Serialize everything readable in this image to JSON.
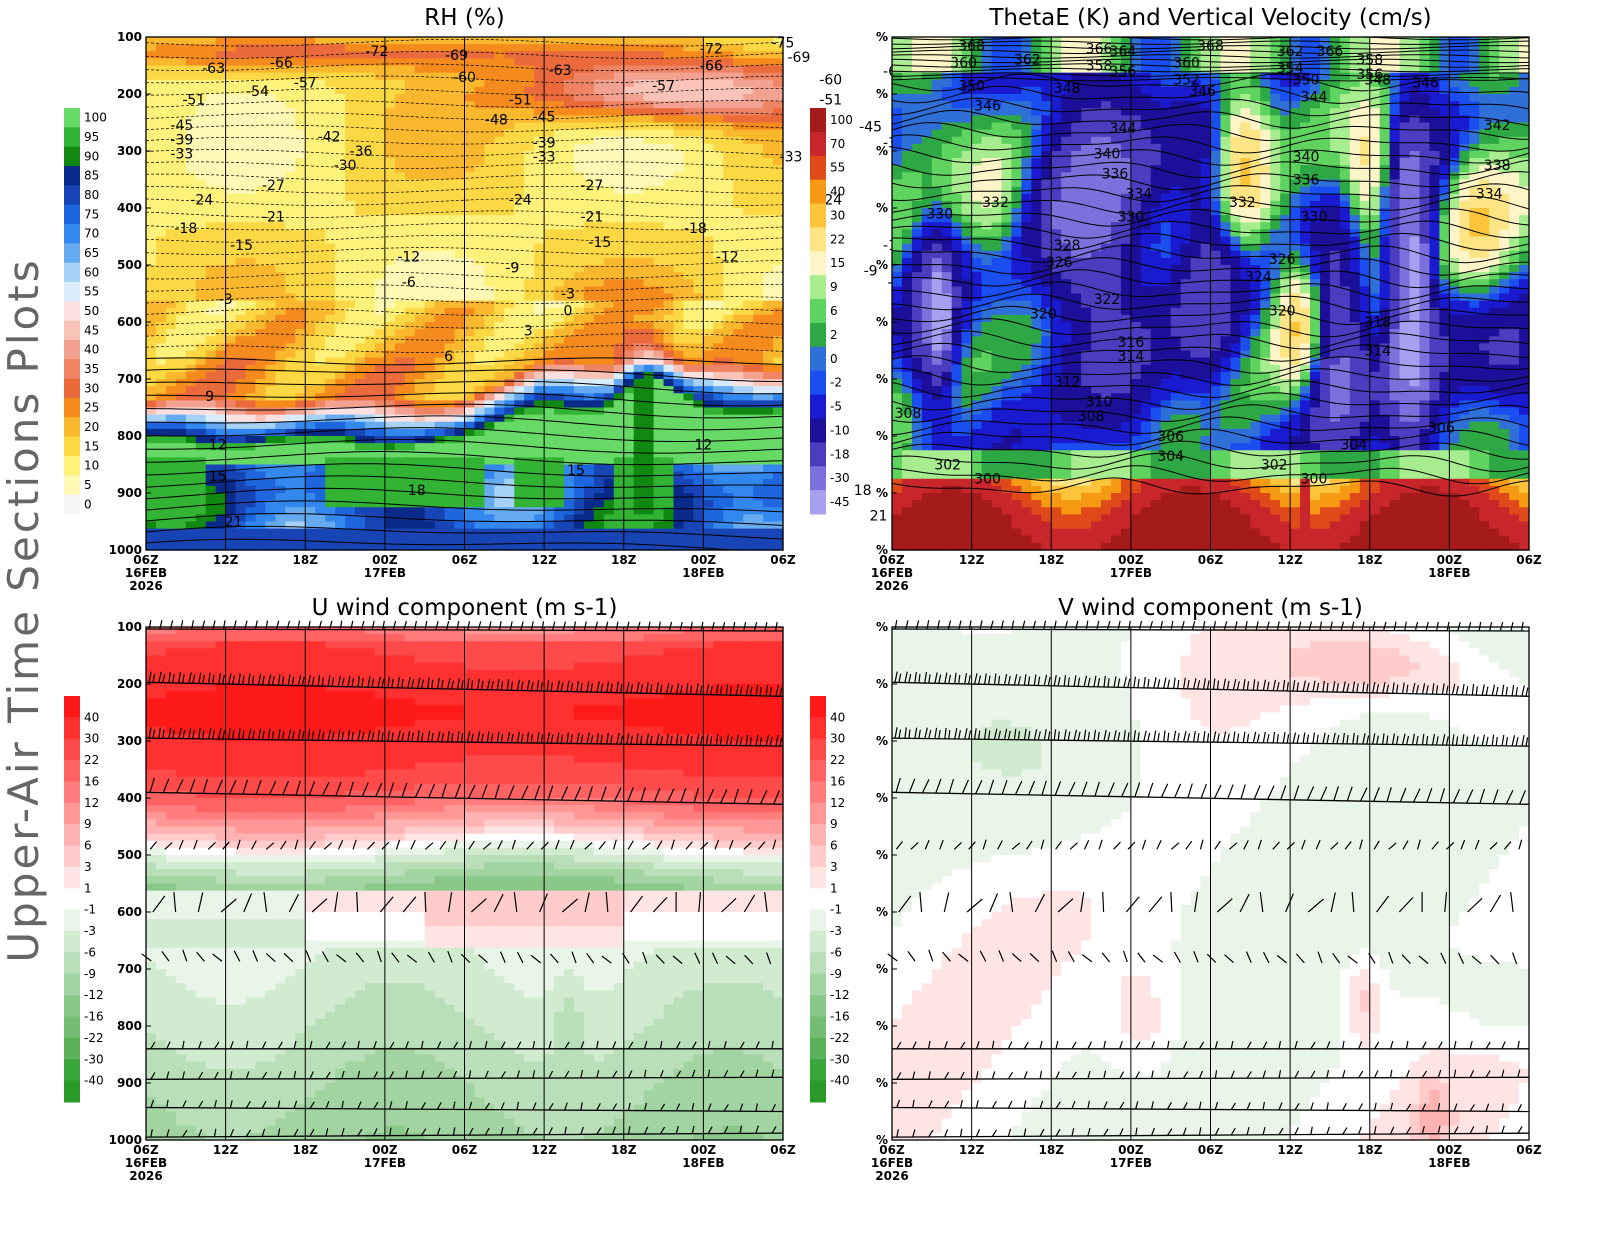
{
  "page": {
    "side_title": "Upper-Air Time Sections Plots"
  },
  "time_axis": {
    "ticks": [
      {
        "label": "06Z",
        "date": "16FEB",
        "year": "2026"
      },
      {
        "label": "12Z",
        "date": "",
        "year": ""
      },
      {
        "label": "18Z",
        "date": "",
        "year": ""
      },
      {
        "label": "00Z",
        "date": "17FEB",
        "year": ""
      },
      {
        "label": "06Z",
        "date": "",
        "year": ""
      },
      {
        "label": "12Z",
        "date": "",
        "year": ""
      },
      {
        "label": "18Z",
        "date": "",
        "year": ""
      },
      {
        "label": "00Z",
        "date": "18FEB",
        "year": ""
      },
      {
        "label": "06Z",
        "date": "",
        "year": ""
      }
    ]
  },
  "chart_data": [
    {
      "id": "rh",
      "type": "heatmap",
      "title": "RH (%)",
      "y_axis_labels": [
        "100",
        "200",
        "300",
        "400",
        "500",
        "600",
        "700",
        "800",
        "900",
        "1000"
      ],
      "colorbar": {
        "levels": [
          "100",
          "95",
          "90",
          "85",
          "80",
          "75",
          "70",
          "65",
          "60",
          "55",
          "50",
          "45",
          "40",
          "35",
          "30",
          "25",
          "20",
          "15",
          "10",
          "5",
          "0"
        ],
        "colors": [
          "#66d966",
          "#33b333",
          "#118811",
          "#0a2a8a",
          "#1845b5",
          "#1e66dd",
          "#3388ee",
          "#66aaf0",
          "#a6d2f7",
          "#d9ecfb",
          "#fde0e0",
          "#f9c3b8",
          "#f3a291",
          "#ef8464",
          "#ea6a3c",
          "#f58a1d",
          "#f9b82d",
          "#fcd944",
          "#fff27a",
          "#fff9b5",
          "#f5f5f5"
        ]
      },
      "overlay": "temperature isotherms (°C)",
      "contour_labels": [
        {
          "t": 1.7,
          "p": 150,
          "v": "-66"
        },
        {
          "t": 2.9,
          "p": 130,
          "v": "-72"
        },
        {
          "t": 3.9,
          "p": 137,
          "v": "-69"
        },
        {
          "t": 0.85,
          "p": 160,
          "v": "-63"
        },
        {
          "t": 1.4,
          "p": 200,
          "v": "-54"
        },
        {
          "t": 2.0,
          "p": 185,
          "v": "-57"
        },
        {
          "t": 0.6,
          "p": 215,
          "v": "-51"
        },
        {
          "t": 4.0,
          "p": 175,
          "v": "-60"
        },
        {
          "t": 5.2,
          "p": 163,
          "v": "-63"
        },
        {
          "t": 4.7,
          "p": 215,
          "v": "-51"
        },
        {
          "t": 4.4,
          "p": 250,
          "v": "-48"
        },
        {
          "t": 5.0,
          "p": 245,
          "v": "-45"
        },
        {
          "t": 7.1,
          "p": 125,
          "v": "-72"
        },
        {
          "t": 8.0,
          "p": 115,
          "v": "-75"
        },
        {
          "t": 7.1,
          "p": 155,
          "v": "-66"
        },
        {
          "t": 8.2,
          "p": 140,
          "v": "-69"
        },
        {
          "t": 6.5,
          "p": 190,
          "v": "-57"
        },
        {
          "t": 8.6,
          "p": 180,
          "v": "-60"
        },
        {
          "t": 9.4,
          "p": 165,
          "v": "-63"
        },
        {
          "t": 8.6,
          "p": 215,
          "v": "-51"
        },
        {
          "t": 9.6,
          "p": 205,
          "v": "-54"
        },
        {
          "t": 10.2,
          "p": 190,
          "v": "-57"
        },
        {
          "t": 10.0,
          "p": 240,
          "v": "-48"
        },
        {
          "t": 9.1,
          "p": 262,
          "v": "-45"
        },
        {
          "t": 0.45,
          "p": 260,
          "v": "-45"
        },
        {
          "t": 0.45,
          "p": 285,
          "v": "-39"
        },
        {
          "t": 0.45,
          "p": 310,
          "v": "-33"
        },
        {
          "t": 2.3,
          "p": 280,
          "v": "-42"
        },
        {
          "t": 2.7,
          "p": 305,
          "v": "-36"
        },
        {
          "t": 2.5,
          "p": 330,
          "v": "-30"
        },
        {
          "t": 5.0,
          "p": 290,
          "v": "-39"
        },
        {
          "t": 5.0,
          "p": 315,
          "v": "-33"
        },
        {
          "t": 9.4,
          "p": 290,
          "v": "-39"
        },
        {
          "t": 10.5,
          "p": 280,
          "v": "-42"
        },
        {
          "t": 10.5,
          "p": 305,
          "v": "-36"
        },
        {
          "t": 10.5,
          "p": 330,
          "v": "-30"
        },
        {
          "t": 8.1,
          "p": 315,
          "v": "-33"
        },
        {
          "t": 1.6,
          "p": 365,
          "v": "-27"
        },
        {
          "t": 5.6,
          "p": 365,
          "v": "-27"
        },
        {
          "t": 9.6,
          "p": 365,
          "v": "-27"
        },
        {
          "t": 0.7,
          "p": 390,
          "v": "-24"
        },
        {
          "t": 4.7,
          "p": 390,
          "v": "-24"
        },
        {
          "t": 8.6,
          "p": 390,
          "v": "-24"
        },
        {
          "t": 1.6,
          "p": 420,
          "v": "-21"
        },
        {
          "t": 5.6,
          "p": 420,
          "v": "-21"
        },
        {
          "t": 9.6,
          "p": 420,
          "v": "-21"
        },
        {
          "t": 0.5,
          "p": 440,
          "v": "-18"
        },
        {
          "t": 6.9,
          "p": 440,
          "v": "-18"
        },
        {
          "t": 1.2,
          "p": 470,
          "v": "-15"
        },
        {
          "t": 5.7,
          "p": 465,
          "v": "-15"
        },
        {
          "t": 9.4,
          "p": 470,
          "v": "-15"
        },
        {
          "t": 3.3,
          "p": 490,
          "v": "-12"
        },
        {
          "t": 7.3,
          "p": 490,
          "v": "-12"
        },
        {
          "t": 4.6,
          "p": 510,
          "v": "-9"
        },
        {
          "t": 9.1,
          "p": 515,
          "v": "-9"
        },
        {
          "t": 3.3,
          "p": 535,
          "v": "-6"
        },
        {
          "t": 9.4,
          "p": 535,
          "v": "-6"
        },
        {
          "t": 1.0,
          "p": 565,
          "v": "-3"
        },
        {
          "t": 5.3,
          "p": 555,
          "v": "-3"
        },
        {
          "t": 10.0,
          "p": 555,
          "v": "-3"
        },
        {
          "t": 5.3,
          "p": 585,
          "v": "0"
        },
        {
          "t": 9.9,
          "p": 585,
          "v": "0"
        },
        {
          "t": 4.8,
          "p": 620,
          "v": "3"
        },
        {
          "t": 9.5,
          "p": 625,
          "v": "3"
        },
        {
          "t": 3.8,
          "p": 665,
          "v": "6"
        },
        {
          "t": 0.8,
          "p": 735,
          "v": "9"
        },
        {
          "t": 0.9,
          "p": 820,
          "v": "12"
        },
        {
          "t": 7.0,
          "p": 820,
          "v": "12"
        },
        {
          "t": 0.9,
          "p": 875,
          "v": "15"
        },
        {
          "t": 5.4,
          "p": 865,
          "v": "15"
        },
        {
          "t": 3.4,
          "p": 900,
          "v": "18"
        },
        {
          "t": 9.0,
          "p": 900,
          "v": "18"
        },
        {
          "t": 1.1,
          "p": 955,
          "v": "21"
        },
        {
          "t": 9.2,
          "p": 945,
          "v": "21"
        }
      ]
    },
    {
      "id": "thetae",
      "type": "heatmap",
      "title": "ThetaE (K) and Vertical Velocity (cm/s)",
      "y_axis_labels": [
        "%",
        "%",
        "%",
        "%",
        "%",
        "%",
        "%",
        "%",
        "%",
        "%"
      ],
      "colorbar": {
        "levels": [
          "100",
          "70",
          "55",
          "40",
          "30",
          "22",
          "15",
          "9",
          "6",
          "2",
          "0",
          "-2",
          "-5",
          "-10",
          "-18",
          "-30",
          "-45"
        ],
        "colors": [
          "#a51a1a",
          "#c8262a",
          "#e04a1a",
          "#f59a12",
          "#fbc43a",
          "#fde585",
          "#fdf4c8",
          "#a8ec90",
          "#5fd35f",
          "#2ea844",
          "#2f70d8",
          "#1b4ef0",
          "#1a1ad0",
          "#1c0f9a",
          "#4c3cc0",
          "#7b70dc",
          "#a79ff0"
        ]
      },
      "overlay": "equivalent potential temperature isentropes (K)",
      "contour_labels": [
        {
          "t": 1.0,
          "p": 120,
          "v": "368"
        },
        {
          "t": 0.9,
          "p": 150,
          "v": "360"
        },
        {
          "t": 1.7,
          "p": 145,
          "v": "362"
        },
        {
          "t": 2.6,
          "p": 125,
          "v": "366"
        },
        {
          "t": 2.6,
          "p": 155,
          "v": "358"
        },
        {
          "t": 2.9,
          "p": 130,
          "v": "364"
        },
        {
          "t": 2.9,
          "p": 165,
          "v": "356"
        },
        {
          "t": 4.0,
          "p": 120,
          "v": "368"
        },
        {
          "t": 3.7,
          "p": 150,
          "v": "360"
        },
        {
          "t": 3.7,
          "p": 180,
          "v": "352"
        },
        {
          "t": 5.0,
          "p": 130,
          "v": "362"
        },
        {
          "t": 5.0,
          "p": 160,
          "v": "354"
        },
        {
          "t": 5.2,
          "p": 180,
          "v": "350"
        },
        {
          "t": 6.0,
          "p": 145,
          "v": "358"
        },
        {
          "t": 6.0,
          "p": 170,
          "v": "356"
        },
        {
          "t": 5.5,
          "p": 130,
          "v": "366"
        },
        {
          "t": 5.3,
          "p": 210,
          "v": "344"
        },
        {
          "t": 1.0,
          "p": 190,
          "v": "350"
        },
        {
          "t": 1.2,
          "p": 225,
          "v": "346"
        },
        {
          "t": 2.2,
          "p": 195,
          "v": "348"
        },
        {
          "t": 3.9,
          "p": 200,
          "v": "346"
        },
        {
          "t": 6.1,
          "p": 180,
          "v": "348"
        },
        {
          "t": 6.7,
          "p": 185,
          "v": "346"
        },
        {
          "t": 2.9,
          "p": 265,
          "v": "344"
        },
        {
          "t": 7.6,
          "p": 260,
          "v": "342"
        },
        {
          "t": 5.2,
          "p": 315,
          "v": "340"
        },
        {
          "t": 2.7,
          "p": 310,
          "v": "340"
        },
        {
          "t": 7.6,
          "p": 330,
          "v": "338"
        },
        {
          "t": 2.8,
          "p": 345,
          "v": "336"
        },
        {
          "t": 5.2,
          "p": 355,
          "v": "336"
        },
        {
          "t": 3.1,
          "p": 380,
          "v": "334"
        },
        {
          "t": 7.5,
          "p": 380,
          "v": "334"
        },
        {
          "t": 1.3,
          "p": 395,
          "v": "332"
        },
        {
          "t": 4.4,
          "p": 395,
          "v": "332"
        },
        {
          "t": 0.6,
          "p": 415,
          "v": "330"
        },
        {
          "t": 3.0,
          "p": 420,
          "v": "330"
        },
        {
          "t": 5.3,
          "p": 420,
          "v": "330"
        },
        {
          "t": 2.2,
          "p": 470,
          "v": "328"
        },
        {
          "t": 2.1,
          "p": 500,
          "v": "326"
        },
        {
          "t": 4.9,
          "p": 495,
          "v": "326"
        },
        {
          "t": 4.6,
          "p": 525,
          "v": "324"
        },
        {
          "t": 2.7,
          "p": 565,
          "v": "322"
        },
        {
          "t": 1.9,
          "p": 590,
          "v": "320"
        },
        {
          "t": 4.9,
          "p": 585,
          "v": "320"
        },
        {
          "t": 6.1,
          "p": 605,
          "v": "318"
        },
        {
          "t": 3.0,
          "p": 640,
          "v": "316"
        },
        {
          "t": 3.0,
          "p": 665,
          "v": "314"
        },
        {
          "t": 6.1,
          "p": 655,
          "v": "314"
        },
        {
          "t": 2.2,
          "p": 710,
          "v": "312"
        },
        {
          "t": 2.6,
          "p": 745,
          "v": "310"
        },
        {
          "t": 2.5,
          "p": 770,
          "v": "308"
        },
        {
          "t": 0.2,
          "p": 765,
          "v": "308"
        },
        {
          "t": 3.5,
          "p": 805,
          "v": "306"
        },
        {
          "t": 6.9,
          "p": 790,
          "v": "306"
        },
        {
          "t": 3.5,
          "p": 840,
          "v": "304"
        },
        {
          "t": 5.8,
          "p": 820,
          "v": "304"
        },
        {
          "t": 0.7,
          "p": 855,
          "v": "302"
        },
        {
          "t": 4.8,
          "p": 855,
          "v": "302"
        },
        {
          "t": 1.2,
          "p": 880,
          "v": "300"
        },
        {
          "t": 5.3,
          "p": 880,
          "v": "300"
        }
      ]
    },
    {
      "id": "u",
      "type": "heatmap",
      "title": "U wind component (m s-1)",
      "y_axis_labels": [
        "100",
        "200",
        "300",
        "400",
        "500",
        "600",
        "700",
        "800",
        "900",
        "1000"
      ],
      "colorbar": {
        "levels": [
          "40",
          "30",
          "22",
          "16",
          "12",
          "9",
          "6",
          "3",
          "1",
          "-1",
          "-3",
          "-6",
          "-9",
          "-12",
          "-16",
          "-22",
          "-30",
          "-40"
        ],
        "colors": [
          "#ff1a1a",
          "#ff3030",
          "#ff4a4a",
          "#ff6262",
          "#ff7d7d",
          "#ff9797",
          "#ffb2b2",
          "#ffcbcb",
          "#ffe4e4",
          "#ffffff",
          "#e9f5e9",
          "#d1ebd1",
          "#b9dfb9",
          "#a2d4a2",
          "#8ac88a",
          "#72bd72",
          "#5ab15a",
          "#3aa53a",
          "#2a9a2a"
        ]
      },
      "overlay": "wind barbs"
    },
    {
      "id": "v",
      "type": "heatmap",
      "title": "V wind component (m s-1)",
      "y_axis_labels": [
        "%",
        "%",
        "%",
        "%",
        "%",
        "%",
        "%",
        "%",
        "%",
        "%"
      ],
      "colorbar": {
        "levels": [
          "40",
          "30",
          "22",
          "16",
          "12",
          "9",
          "6",
          "3",
          "1",
          "-1",
          "-3",
          "-6",
          "-9",
          "-12",
          "-16",
          "-22",
          "-30",
          "-40"
        ],
        "colors": [
          "#ff1a1a",
          "#ff3030",
          "#ff4a4a",
          "#ff6262",
          "#ff7d7d",
          "#ff9797",
          "#ffb2b2",
          "#ffcbcb",
          "#ffe4e4",
          "#ffffff",
          "#e9f5e9",
          "#d1ebd1",
          "#b9dfb9",
          "#a2d4a2",
          "#8ac88a",
          "#72bd72",
          "#5ab15a",
          "#3aa53a",
          "#2a9a2a"
        ]
      },
      "overlay": "wind barbs"
    }
  ]
}
